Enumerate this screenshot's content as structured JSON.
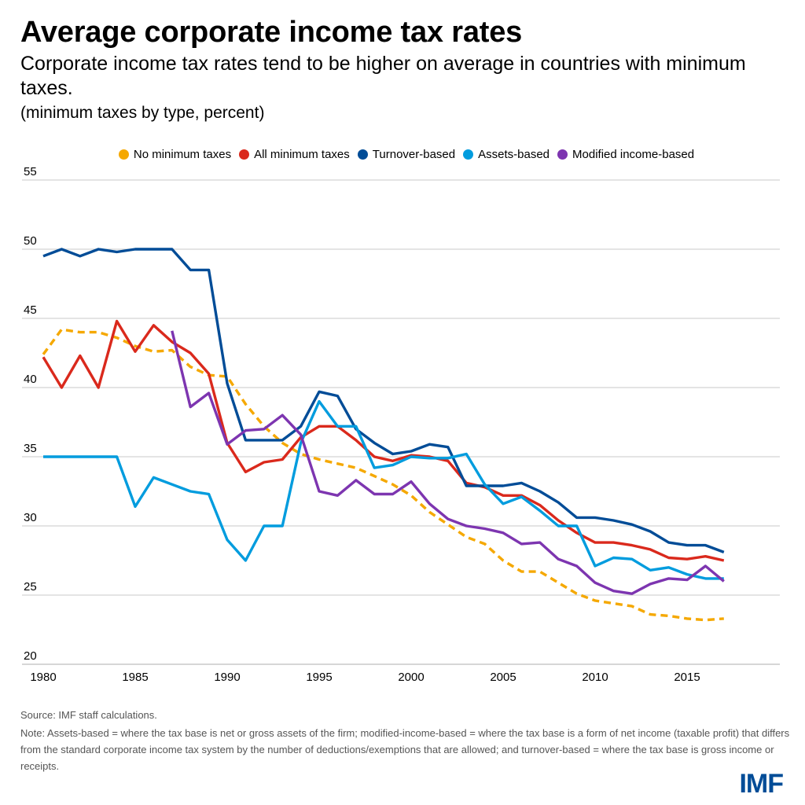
{
  "header": {
    "title": "Average corporate income tax rates",
    "subtitle": "Corporate income tax rates tend to be higher on average in countries with minimum taxes.",
    "units": "(minimum taxes by type, percent)"
  },
  "footer": {
    "source": "Source: IMF staff calculations.",
    "note": "Note: Assets-based = where the tax base is net or gross assets of the firm; modified-income-based = where the tax base is a form of net income (taxable profit) that differs from the standard corporate income tax system by the number of deductions/exemptions that are allowed; and turnover-based = where the tax base is gross income or receipts.",
    "logo": "IMF"
  },
  "chart_data": {
    "type": "line",
    "title": "Average corporate income tax rates",
    "xlabel": "",
    "ylabel": "",
    "xlim": [
      1980,
      2020
    ],
    "ylim": [
      20,
      55
    ],
    "yticks": [
      20,
      25,
      30,
      35,
      40,
      45,
      50,
      55
    ],
    "xticks": [
      1980,
      1985,
      1990,
      1995,
      2000,
      2005,
      2010,
      2015
    ],
    "grid": "horizontal",
    "legend_position": "top-center",
    "series": [
      {
        "name": "No minimum taxes",
        "color": "#F5A800",
        "style": "dashed",
        "start_year": 1980,
        "values": [
          42.4,
          44.2,
          44.0,
          44.0,
          43.6,
          43.0,
          42.6,
          42.7,
          41.5,
          40.9,
          40.8,
          38.8,
          37.2,
          36.0,
          35.2,
          34.8,
          34.5,
          34.2,
          33.6,
          33.0,
          32.2,
          31.0,
          30.1,
          29.2,
          28.7,
          27.5,
          26.7,
          26.7,
          25.9,
          25.1,
          24.6,
          24.4,
          24.2,
          23.6,
          23.5,
          23.3,
          23.2,
          23.3
        ]
      },
      {
        "name": "All minimum taxes",
        "color": "#DA291C",
        "style": "solid",
        "start_year": 1980,
        "values": [
          42.2,
          40.0,
          42.3,
          40.0,
          44.8,
          42.6,
          44.5,
          43.3,
          42.5,
          41.0,
          36.0,
          33.9,
          34.6,
          34.8,
          36.4,
          37.2,
          37.2,
          36.2,
          35.0,
          34.7,
          35.1,
          35.0,
          34.7,
          33.1,
          32.8,
          32.2,
          32.2,
          31.5,
          30.4,
          29.5,
          28.8,
          28.8,
          28.6,
          28.3,
          27.7,
          27.6,
          27.8,
          27.5
        ]
      },
      {
        "name": "Turnover-based",
        "color": "#004C97",
        "style": "solid",
        "start_year": 1980,
        "values": [
          49.5,
          50.0,
          49.5,
          50.0,
          49.8,
          50.0,
          50.0,
          50.0,
          48.5,
          48.5,
          40.3,
          36.2,
          36.2,
          36.2,
          37.2,
          39.7,
          39.4,
          37.0,
          36.0,
          35.2,
          35.4,
          35.9,
          35.7,
          32.9,
          32.9,
          32.9,
          33.1,
          32.5,
          31.7,
          30.6,
          30.6,
          30.4,
          30.1,
          29.6,
          28.8,
          28.6,
          28.6,
          28.1
        ]
      },
      {
        "name": "Assets-based",
        "color": "#009CDE",
        "style": "solid",
        "start_year": 1980,
        "values": [
          35.0,
          35.0,
          35.0,
          35.0,
          35.0,
          31.4,
          33.5,
          33.0,
          32.5,
          32.3,
          29.0,
          27.5,
          30.0,
          30.0,
          36.0,
          39.0,
          37.2,
          37.2,
          34.2,
          34.4,
          35.0,
          34.9,
          34.9,
          35.2,
          33.0,
          31.6,
          32.1,
          31.1,
          30.0,
          30.0,
          27.1,
          27.7,
          27.6,
          26.8,
          27.0,
          26.5,
          26.2,
          26.2
        ]
      },
      {
        "name": "Modified income-based",
        "color": "#7D35B0",
        "style": "solid",
        "start_year": 1987,
        "values": [
          44.1,
          38.6,
          39.6,
          35.9,
          36.9,
          37.0,
          38.0,
          36.6,
          32.5,
          32.2,
          33.3,
          32.3,
          32.3,
          33.2,
          31.6,
          30.5,
          30.0,
          29.8,
          29.5,
          28.7,
          28.8,
          27.6,
          27.1,
          25.9,
          25.3,
          25.1,
          25.8,
          26.2,
          26.1,
          27.1,
          26.0
        ]
      }
    ]
  }
}
